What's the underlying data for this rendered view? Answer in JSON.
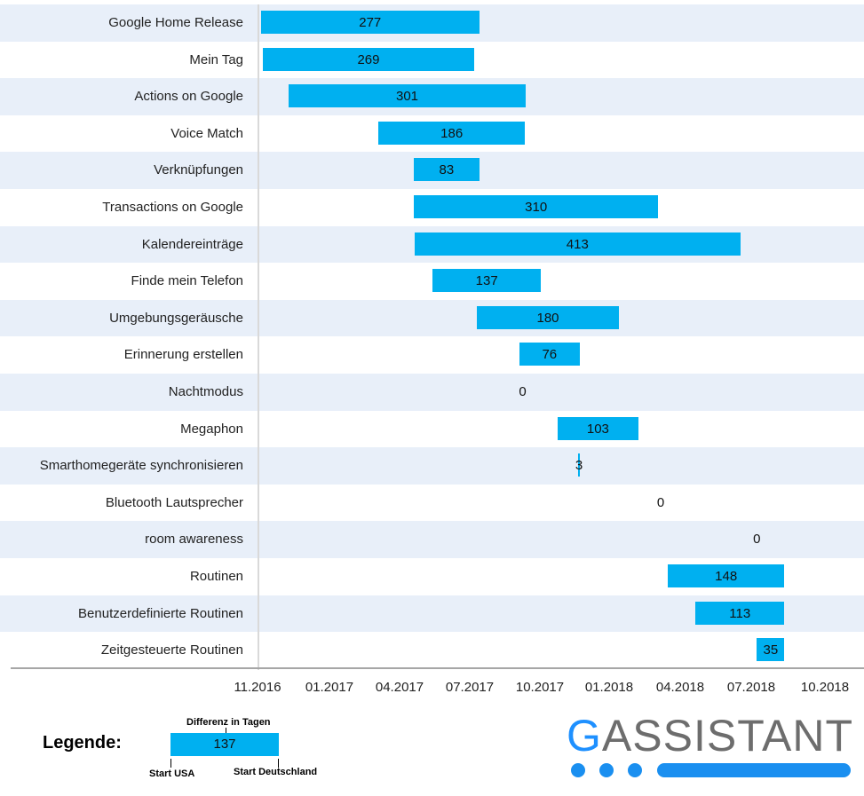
{
  "chart_data": {
    "type": "bar",
    "subtype": "gantt",
    "title": "",
    "x_unit": "days since 11.2016",
    "bar_color": "#00b0f0",
    "row_alt_color": "#e8eff9",
    "tasks": [
      {
        "label": "Google Home Release",
        "start": 2,
        "duration": 277
      },
      {
        "label": "Mein Tag",
        "start": 4,
        "duration": 269
      },
      {
        "label": "Actions on Google",
        "start": 37,
        "duration": 301
      },
      {
        "label": "Voice Match",
        "start": 151,
        "duration": 186
      },
      {
        "label": "Verknüpfungen",
        "start": 196,
        "duration": 83
      },
      {
        "label": "Transactions on Google",
        "start": 196,
        "duration": 310
      },
      {
        "label": "Kalendereinträge",
        "start": 197,
        "duration": 413
      },
      {
        "label": "Finde mein Telefon",
        "start": 220,
        "duration": 137
      },
      {
        "label": "Umgebungsgeräusche",
        "start": 276,
        "duration": 180
      },
      {
        "label": "Erinnerung erstellen",
        "start": 330,
        "duration": 76
      },
      {
        "label": "Nachtmodus",
        "start": 334,
        "duration": 0
      },
      {
        "label": "Megaphon",
        "start": 378,
        "duration": 103
      },
      {
        "label": "Smarthomegeräte synchronisieren",
        "start": 404,
        "duration": 3
      },
      {
        "label": "Bluetooth Lautsprecher",
        "start": 509,
        "duration": 0
      },
      {
        "label": "room awareness",
        "start": 631,
        "duration": 0
      },
      {
        "label": "Routinen",
        "start": 518,
        "duration": 148
      },
      {
        "label": "Benutzerdefinierte Routinen",
        "start": 553,
        "duration": 113
      },
      {
        "label": "Zeitgesteuerte Routinen",
        "start": 631,
        "duration": 35
      }
    ],
    "x_ticks": [
      "11.2016",
      "01.2017",
      "04.2017",
      "07.2017",
      "10.2017",
      "01.2018",
      "04.2018",
      "07.2018",
      "10.2018"
    ]
  },
  "legend": {
    "title": "Legende:",
    "example_value": "137",
    "top_label": "Differenz in Tagen",
    "left_label": "Start USA",
    "right_label": "Start Deutschland"
  },
  "logo": {
    "first_letter": "G",
    "rest": "ASSISTANT"
  }
}
